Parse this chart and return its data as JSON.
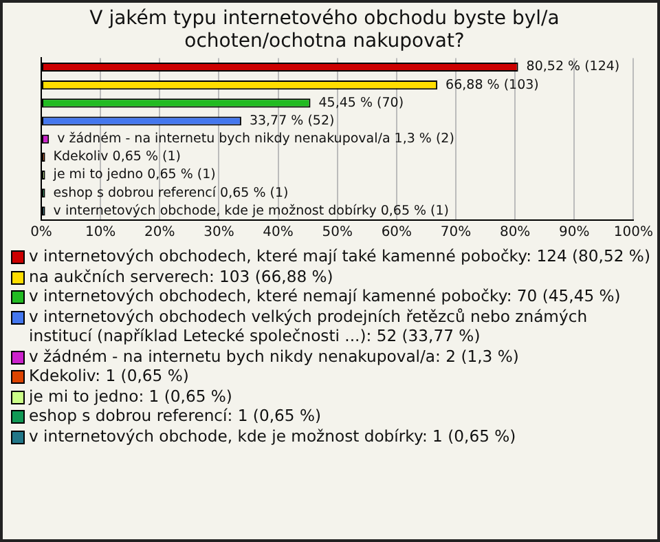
{
  "chart_data": {
    "type": "bar",
    "orientation": "horizontal",
    "title": "V jakém typu internetového obchodu byste byl/a ochoten/ochotna nakupovat?",
    "categories": [
      null
    ],
    "series": [
      {
        "name": "v internetových obchodech, které mají také kamenné pobočky: 124 (80,52 %)",
        "color": "#cc0000",
        "values": [
          80.52
        ],
        "value_labels": [
          "80,52 % (124)"
        ]
      },
      {
        "name": "na aukčních serverech: 103 (66,88 %)",
        "color": "#ffdd00",
        "values": [
          66.88
        ],
        "value_labels": [
          "66,88 % (103)"
        ]
      },
      {
        "name": "v internetových obchodech, které nemají kamenné pobočky: 70 (45,45 %)",
        "color": "#22bb22",
        "values": [
          45.45
        ],
        "value_labels": [
          "45,45 % (70)"
        ]
      },
      {
        "name": "v internetových obchodech velkých prodejních řetězců nebo známých institucí (například Letecké společnosti ...): 52 (33,77 %)",
        "color": "#4477ee",
        "values": [
          33.77
        ],
        "value_labels": [
          "33,77 % (52)"
        ]
      },
      {
        "name": "v žádném - na internetu bych nikdy nenakupoval/a: 2 (1,3 %)",
        "color": "#cc22cc",
        "values": [
          1.3
        ],
        "value_labels": [
          "v žádném - na internetu bych nikdy nenakupoval/a 1,3 % (2)"
        ]
      },
      {
        "name": "Kdekoliv: 1 (0,65 %)",
        "color": "#dd4400",
        "values": [
          0.65
        ],
        "value_labels": [
          "Kdekoliv 0,65 % (1)"
        ]
      },
      {
        "name": "je mi to jedno: 1 (0,65 %)",
        "color": "#ccff88",
        "values": [
          0.65
        ],
        "value_labels": [
          "je mi to jedno 0,65 % (1)"
        ]
      },
      {
        "name": "eshop s dobrou referencí: 1 (0,65 %)",
        "color": "#119955",
        "values": [
          0.65
        ],
        "value_labels": [
          "eshop s dobrou referencí 0,65 % (1)"
        ]
      },
      {
        "name": "v internetových obchode, kde je možnost dobírky: 1 (0,65 %)",
        "color": "#227788",
        "values": [
          0.65
        ],
        "value_labels": [
          "v internetových obchode, kde je možnost dobírky 0,65 % (1)"
        ]
      }
    ],
    "xlim": [
      0,
      100
    ],
    "xticks": [
      {
        "value": 0,
        "label": "0%"
      },
      {
        "value": 10,
        "label": "10%"
      },
      {
        "value": 20,
        "label": "20%"
      },
      {
        "value": 30,
        "label": "30%"
      },
      {
        "value": 40,
        "label": "40%"
      },
      {
        "value": 50,
        "label": "50%"
      },
      {
        "value": 60,
        "label": "60%"
      },
      {
        "value": 70,
        "label": "70%"
      },
      {
        "value": 80,
        "label": "80%"
      },
      {
        "value": 90,
        "label": "90%"
      },
      {
        "value": 100,
        "label": "100%"
      }
    ],
    "grid": "x",
    "legend": "bottom"
  }
}
